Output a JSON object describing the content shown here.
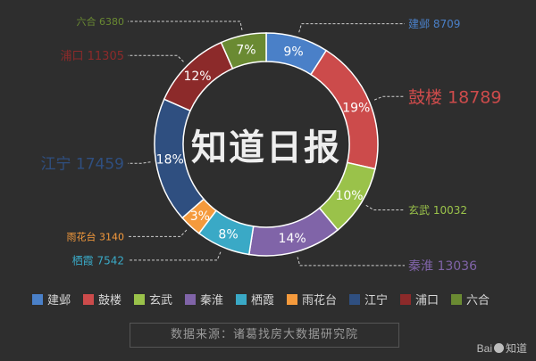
{
  "chart_data": {
    "type": "pie",
    "variant": "donut",
    "center_text": "知道日报",
    "source": "数据来源：诸葛找房大数据研究院",
    "legend_position": "bottom",
    "slices": [
      {
        "name": "建邺",
        "value": 8709,
        "percent": "9%",
        "color": "#4a80c8"
      },
      {
        "name": "鼓楼",
        "value": 18789,
        "percent": "19%",
        "color": "#cc4b4b"
      },
      {
        "name": "玄武",
        "value": 10032,
        "percent": "10%",
        "color": "#9ac24a"
      },
      {
        "name": "秦淮",
        "value": 13036,
        "percent": "14%",
        "color": "#8064a8"
      },
      {
        "name": "栖霞",
        "value": 7542,
        "percent": "8%",
        "color": "#3aa9c6"
      },
      {
        "name": "雨花台",
        "value": 3140,
        "percent": "3%",
        "color": "#f59a3c"
      },
      {
        "name": "江宁",
        "value": 17459,
        "percent": "18%",
        "color": "#2f4f80"
      },
      {
        "name": "浦口",
        "value": 11305,
        "percent": "12%",
        "color": "#8c2a2a"
      },
      {
        "name": "六合",
        "value": 6380,
        "percent": "7%",
        "color": "#6a8a32"
      }
    ]
  },
  "watermark": {
    "brand": "Bai",
    "suffix": "知道"
  }
}
